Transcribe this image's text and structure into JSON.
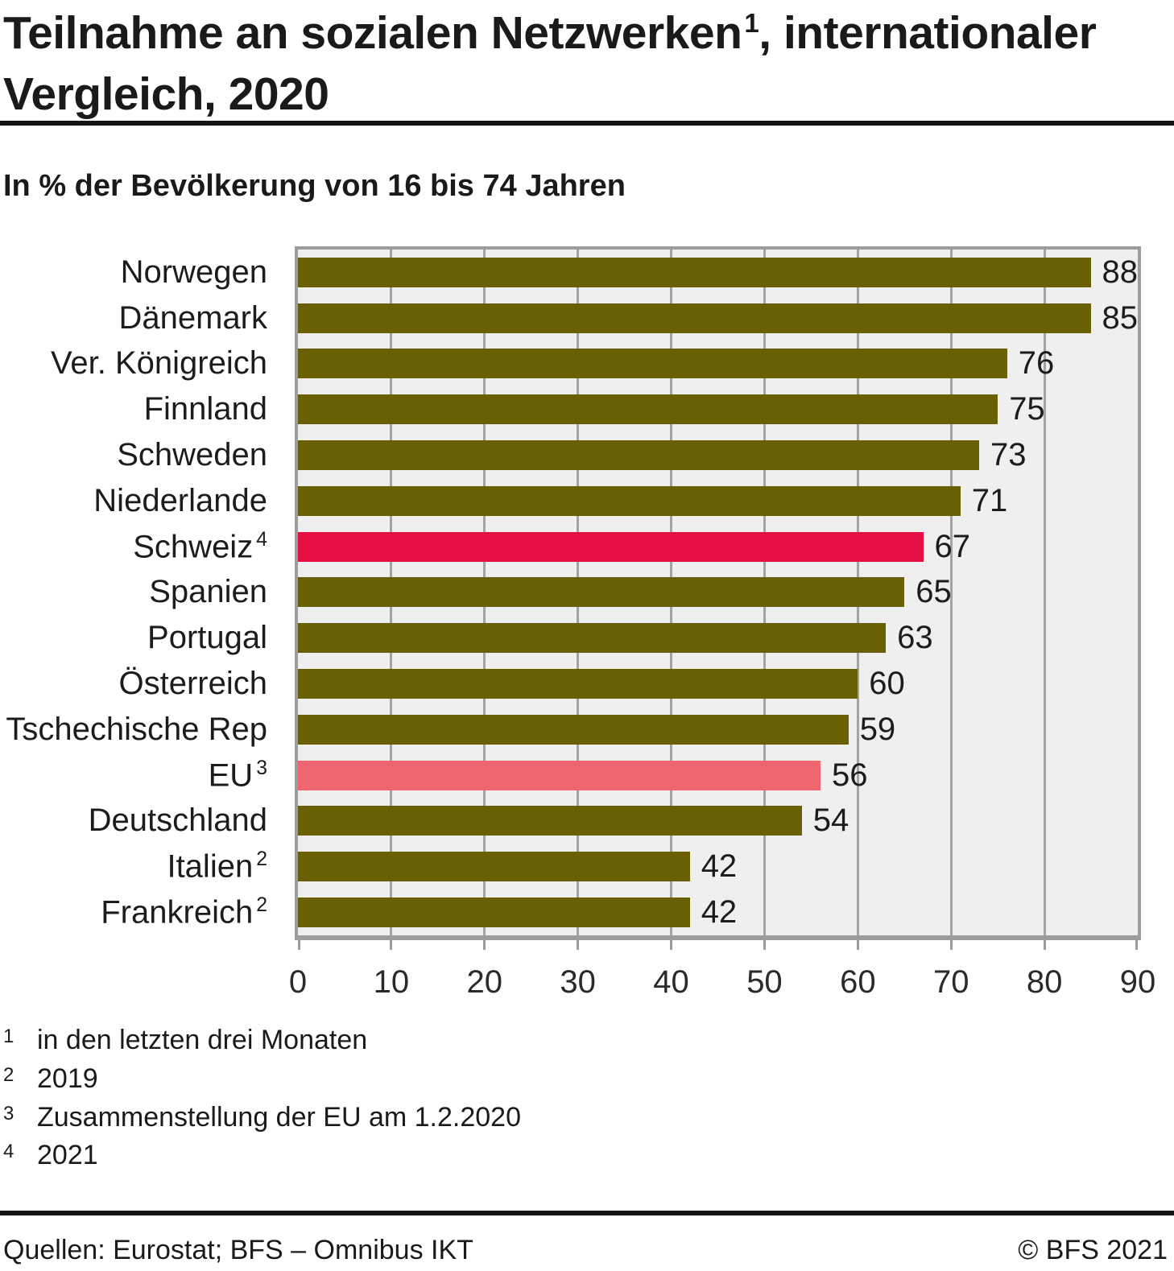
{
  "header": {
    "title_main": "Teilnahme an sozialen Netzwerken",
    "title_sup": "1",
    "title_rest": ", internationaler Vergleich, 2020",
    "subtitle": "In % der Bevölkerung von 16 bis 74 Jahren"
  },
  "chart_data": {
    "type": "bar",
    "orientation": "horizontal",
    "title": "Teilnahme an sozialen Netzwerken, internationaler Vergleich, 2020",
    "xlabel": "",
    "ylabel": "",
    "xlim": [
      0,
      90
    ],
    "x_ticks": [
      0,
      10,
      20,
      30,
      40,
      50,
      60,
      70,
      80,
      90
    ],
    "grid": true,
    "unit": "% der Bevölkerung von 16 bis 74 Jahren",
    "categories": [
      "Norwegen",
      "Dänemark",
      "Ver. Königreich",
      "Finnland",
      "Schweden",
      "Niederlande",
      "Schweiz",
      "Spanien",
      "Portugal",
      "Österreich",
      "Tschechische Rep",
      "EU",
      "Deutschland",
      "Italien",
      "Frankreich"
    ],
    "category_sups": [
      "",
      "",
      "",
      "",
      "",
      "",
      "4",
      "",
      "",
      "",
      "",
      "3",
      "",
      "2",
      "2"
    ],
    "values": [
      88,
      85,
      76,
      75,
      73,
      71,
      67,
      65,
      63,
      60,
      59,
      56,
      54,
      42,
      42
    ],
    "colors": {
      "default": "#686002",
      "schweiz": "#e50f44",
      "eu": "#ef666e",
      "plot_background": "#efefef",
      "gridline": "#a3a3a3"
    },
    "bar_color_keys": [
      "default",
      "default",
      "default",
      "default",
      "default",
      "default",
      "schweiz",
      "default",
      "default",
      "default",
      "default",
      "eu",
      "default",
      "default",
      "default"
    ]
  },
  "footnotes": [
    {
      "sup": "1",
      "text": "in den letzten drei Monaten"
    },
    {
      "sup": "2",
      "text": "2019"
    },
    {
      "sup": "3",
      "text": "Zusammenstellung der EU am 1.2.2020"
    },
    {
      "sup": "4",
      "text": "2021"
    }
  ],
  "footer": {
    "source": "Quellen: Eurostat; BFS – Omnibus IKT",
    "copyright": "© BFS 2021"
  }
}
